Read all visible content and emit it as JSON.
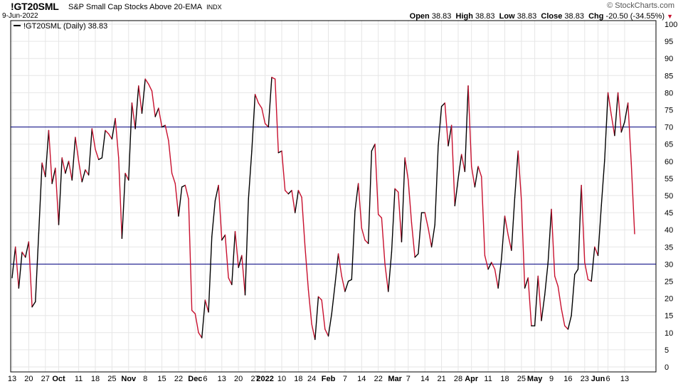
{
  "header": {
    "symbol": "!GT20SML",
    "description": "S&P Small Cap Stocks Above 20-EMA",
    "exchange": "INDX",
    "date": "9-Jun-2022",
    "brand": "© StockCharts.com",
    "open_label": "Open",
    "open": "38.83",
    "high_label": "High",
    "high": "38.83",
    "low_label": "Low",
    "low": "38.83",
    "close_label": "Close",
    "close": "38.83",
    "chg_label": "Chg",
    "chg": "-20.50 (-34.55%)"
  },
  "colors": {
    "up": "#000000",
    "down": "#c8102e",
    "refline": "#000080",
    "grid": "#e6e6e6"
  },
  "chart_data": {
    "type": "line",
    "legend": "!GT20SML (Daily) 38.83",
    "ylim": [
      0,
      100
    ],
    "yticks": [
      0,
      5,
      10,
      15,
      20,
      25,
      30,
      35,
      40,
      45,
      50,
      55,
      60,
      65,
      70,
      75,
      80,
      85,
      90,
      95,
      100
    ],
    "reference_lines": [
      70,
      30
    ],
    "x_tick_labels": [
      {
        "label": "13",
        "i": 0
      },
      {
        "label": "20",
        "i": 5
      },
      {
        "label": "27",
        "i": 10
      },
      {
        "label": "Oct",
        "i": 14,
        "major": true
      },
      {
        "label": "11",
        "i": 20
      },
      {
        "label": "18",
        "i": 25
      },
      {
        "label": "25",
        "i": 30
      },
      {
        "label": "Nov",
        "i": 35,
        "major": true
      },
      {
        "label": "8",
        "i": 40
      },
      {
        "label": "15",
        "i": 45
      },
      {
        "label": "22",
        "i": 50
      },
      {
        "label": "Dec",
        "i": 55,
        "major": true
      },
      {
        "label": "6",
        "i": 58
      },
      {
        "label": "13",
        "i": 63
      },
      {
        "label": "20",
        "i": 68
      },
      {
        "label": "27",
        "i": 73
      },
      {
        "label": "2022",
        "i": 76,
        "major": true
      },
      {
        "label": "10",
        "i": 81
      },
      {
        "label": "18",
        "i": 86
      },
      {
        "label": "24",
        "i": 90
      },
      {
        "label": "Feb",
        "i": 95,
        "major": true
      },
      {
        "label": "7",
        "i": 100
      },
      {
        "label": "14",
        "i": 105
      },
      {
        "label": "22",
        "i": 110
      },
      {
        "label": "Mar",
        "i": 115,
        "major": true
      },
      {
        "label": "7",
        "i": 119
      },
      {
        "label": "14",
        "i": 124
      },
      {
        "label": "21",
        "i": 129
      },
      {
        "label": "28",
        "i": 134
      },
      {
        "label": "Apr",
        "i": 138,
        "major": true
      },
      {
        "label": "11",
        "i": 143
      },
      {
        "label": "18",
        "i": 148
      },
      {
        "label": "25",
        "i": 153
      },
      {
        "label": "May",
        "i": 157,
        "major": true
      },
      {
        "label": "9",
        "i": 162
      },
      {
        "label": "16",
        "i": 167
      },
      {
        "label": "23",
        "i": 172
      },
      {
        "label": "Jun",
        "i": 176,
        "major": true
      },
      {
        "label": "6",
        "i": 179
      },
      {
        "label": "13",
        "i": 184
      }
    ],
    "values": [
      26,
      35,
      23,
      33.5,
      32,
      36.5,
      17.5,
      19,
      39,
      59.5,
      55.5,
      69,
      53.5,
      58,
      41.5,
      61,
      56.5,
      60,
      54.5,
      67,
      60,
      54,
      57.5,
      56,
      69.5,
      63.5,
      60.5,
      61,
      69,
      68,
      66.5,
      72.5,
      61,
      37.5,
      56.5,
      54.5,
      77,
      69.5,
      82,
      74,
      84,
      82.5,
      80.5,
      73,
      75.5,
      70,
      70.5,
      66,
      56.5,
      53.5,
      44,
      52.5,
      53,
      49,
      16.5,
      15.5,
      10,
      8.5,
      19.5,
      16,
      38,
      48.5,
      53,
      37,
      38.5,
      26,
      24,
      39.5,
      29,
      32.5,
      21,
      49,
      63,
      79.5,
      77,
      75.5,
      71,
      70,
      84.5,
      84,
      62.5,
      63,
      51.5,
      50.5,
      51.5,
      45,
      51.5,
      49.5,
      35,
      22.5,
      12.5,
      8,
      20.5,
      19.5,
      11,
      9,
      15.5,
      24,
      33,
      26.5,
      22,
      25,
      25.5,
      45.5,
      53.5,
      40.5,
      37,
      36,
      63,
      65,
      44.5,
      43.5,
      30,
      22,
      33.5,
      52,
      51,
      36.5,
      61,
      54.5,
      42,
      32,
      33,
      45,
      45,
      40.5,
      35,
      41.5,
      64.5,
      76,
      77,
      64.5,
      70.5,
      47,
      55,
      62,
      57,
      82,
      58.5,
      52.5,
      58.5,
      55.5,
      32.5,
      28.5,
      30.5,
      28.5,
      23,
      31.5,
      44,
      38.5,
      34,
      49.5,
      63,
      48.5,
      23,
      26,
      12,
      12,
      26.5,
      13.5,
      21,
      30.5,
      46,
      26.5,
      23.5,
      17,
      12,
      11,
      15,
      27,
      28.5,
      53,
      30.5,
      25.5,
      25,
      35,
      32.5,
      47,
      60.5,
      80,
      73.5,
      67.5,
      80,
      68.5,
      71.5,
      77,
      59.3,
      38.83
    ]
  }
}
